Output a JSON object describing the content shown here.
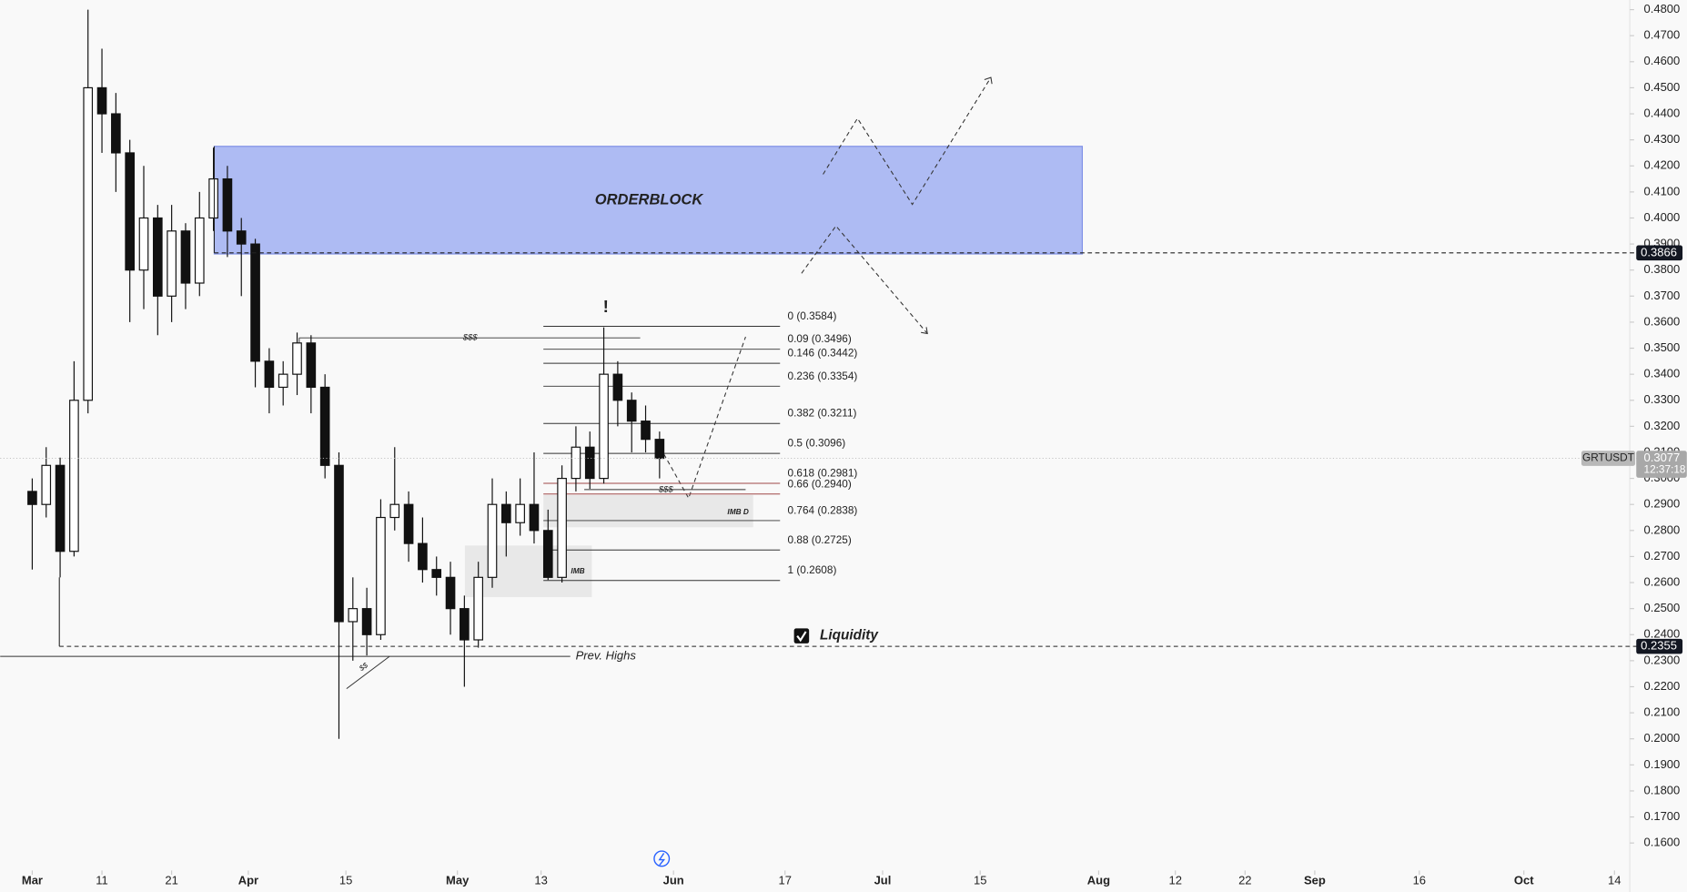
{
  "chart_data": {
    "type": "candlestick",
    "symbol": "GRTUSDT",
    "x": [
      0,
      2,
      4,
      6,
      8,
      10,
      12,
      14,
      16,
      18,
      20,
      22,
      24,
      26,
      28,
      30,
      32,
      34,
      36,
      38,
      40,
      42,
      44,
      46,
      48,
      50,
      52,
      54,
      56,
      58,
      60,
      62,
      64,
      66,
      68,
      70,
      72,
      74,
      76,
      78,
      80,
      82,
      84,
      86,
      88,
      90
    ],
    "open": [
      0.295,
      0.29,
      0.305,
      0.272,
      0.33,
      0.45,
      0.44,
      0.425,
      0.38,
      0.4,
      0.37,
      0.395,
      0.375,
      0.4,
      0.415,
      0.395,
      0.39,
      0.345,
      0.335,
      0.34,
      0.352,
      0.335,
      0.305,
      0.245,
      0.25,
      0.24,
      0.285,
      0.29,
      0.275,
      0.265,
      0.262,
      0.25,
      0.238,
      0.262,
      0.29,
      0.283,
      0.29,
      0.28,
      0.262,
      0.3,
      0.312,
      0.3,
      0.34,
      0.33,
      0.322,
      0.315
    ],
    "high": [
      0.3,
      0.312,
      0.308,
      0.345,
      0.48,
      0.465,
      0.448,
      0.43,
      0.42,
      0.405,
      0.405,
      0.398,
      0.41,
      0.427,
      0.42,
      0.4,
      0.392,
      0.35,
      0.345,
      0.356,
      0.355,
      0.34,
      0.31,
      0.262,
      0.258,
      0.292,
      0.312,
      0.295,
      0.285,
      0.27,
      0.268,
      0.255,
      0.268,
      0.3,
      0.295,
      0.3,
      0.31,
      0.288,
      0.305,
      0.32,
      0.318,
      0.358,
      0.345,
      0.333,
      0.328,
      0.318
    ],
    "low": [
      0.265,
      0.285,
      0.262,
      0.27,
      0.325,
      0.425,
      0.41,
      0.36,
      0.365,
      0.355,
      0.36,
      0.365,
      0.37,
      0.395,
      0.385,
      0.37,
      0.335,
      0.325,
      0.328,
      0.332,
      0.325,
      0.3,
      0.2,
      0.23,
      0.232,
      0.238,
      0.28,
      0.268,
      0.26,
      0.255,
      0.24,
      0.22,
      0.235,
      0.258,
      0.27,
      0.278,
      0.275,
      0.261,
      0.26,
      0.295,
      0.296,
      0.298,
      0.32,
      0.31,
      0.31,
      0.3
    ],
    "close": [
      0.29,
      0.305,
      0.272,
      0.33,
      0.45,
      0.44,
      0.425,
      0.38,
      0.4,
      0.37,
      0.395,
      0.375,
      0.4,
      0.415,
      0.395,
      0.39,
      0.345,
      0.335,
      0.34,
      0.352,
      0.335,
      0.305,
      0.245,
      0.25,
      0.24,
      0.285,
      0.29,
      0.275,
      0.265,
      0.262,
      0.25,
      0.238,
      0.262,
      0.29,
      0.283,
      0.29,
      0.28,
      0.262,
      0.3,
      0.312,
      0.3,
      0.34,
      0.33,
      0.322,
      0.315,
      0.3077
    ],
    "xlim": [
      -4.6,
      229.2
    ],
    "ylim": [
      0.1511,
      0.4837
    ],
    "xticks": [
      {
        "value": 0,
        "label": "Mar"
      },
      {
        "value": 10,
        "label": "11"
      },
      {
        "value": 20,
        "label": "21"
      },
      {
        "value": 31,
        "label": "Apr"
      },
      {
        "value": 45,
        "label": "15"
      },
      {
        "value": 61,
        "label": "May"
      },
      {
        "value": 73,
        "label": "13"
      },
      {
        "value": 92,
        "label": "Jun"
      },
      {
        "value": 108,
        "label": "17"
      },
      {
        "value": 122,
        "label": "Jul"
      },
      {
        "value": 136,
        "label": "15"
      },
      {
        "value": 153,
        "label": "Aug"
      },
      {
        "value": 164,
        "label": "12"
      },
      {
        "value": 174,
        "label": "22"
      },
      {
        "value": 184,
        "label": "Sep"
      },
      {
        "value": 199,
        "label": "16"
      },
      {
        "value": 214,
        "label": "Oct"
      },
      {
        "value": 227,
        "label": "14"
      }
    ],
    "yticks": [
      {
        "value": 0.48,
        "label": "0.4800"
      },
      {
        "value": 0.47,
        "label": "0.4700"
      },
      {
        "value": 0.46,
        "label": "0.4600"
      },
      {
        "value": 0.45,
        "label": "0.4500"
      },
      {
        "value": 0.44,
        "label": "0.4400"
      },
      {
        "value": 0.43,
        "label": "0.4300"
      },
      {
        "value": 0.42,
        "label": "0.4200"
      },
      {
        "value": 0.41,
        "label": "0.4100"
      },
      {
        "value": 0.4,
        "label": "0.4000"
      },
      {
        "value": 0.39,
        "label": "0.3900"
      },
      {
        "value": 0.38,
        "label": "0.3800"
      },
      {
        "value": 0.37,
        "label": "0.3700"
      },
      {
        "value": 0.36,
        "label": "0.3600"
      },
      {
        "value": 0.35,
        "label": "0.3500"
      },
      {
        "value": 0.34,
        "label": "0.3400"
      },
      {
        "value": 0.33,
        "label": "0.3300"
      },
      {
        "value": 0.32,
        "label": "0.3200"
      },
      {
        "value": 0.31,
        "label": "0.3100"
      },
      {
        "value": 0.3,
        "label": "0.3000"
      },
      {
        "value": 0.29,
        "label": "0.2900"
      },
      {
        "value": 0.28,
        "label": "0.2800"
      },
      {
        "value": 0.27,
        "label": "0.2700"
      },
      {
        "value": 0.26,
        "label": "0.2600"
      },
      {
        "value": 0.25,
        "label": "0.2500"
      },
      {
        "value": 0.24,
        "label": "0.2400"
      },
      {
        "value": 0.23,
        "label": "0.2300"
      },
      {
        "value": 0.22,
        "label": "0.2200"
      },
      {
        "value": 0.21,
        "label": "0.2100"
      },
      {
        "value": 0.2,
        "label": "0.2000"
      },
      {
        "value": 0.19,
        "label": "0.1900"
      },
      {
        "value": 0.18,
        "label": "0.1800"
      },
      {
        "value": 0.17,
        "label": "0.1700"
      },
      {
        "value": 0.16,
        "label": "0.1600"
      }
    ],
    "fib_levels": [
      {
        "value": 0.3584,
        "label": "0 (0.3584)"
      },
      {
        "value": 0.3496,
        "label": "0.09 (0.3496)"
      },
      {
        "value": 0.3442,
        "label": "0.146 (0.3442)"
      },
      {
        "value": 0.3354,
        "label": "0.236 (0.3354)"
      },
      {
        "value": 0.3211,
        "label": "0.382 (0.3211)"
      },
      {
        "value": 0.3096,
        "label": "0.5 (0.3096)"
      },
      {
        "value": 0.2981,
        "label": "0.618 (0.2981)"
      },
      {
        "value": 0.294,
        "label": "0.66 (0.2940)"
      },
      {
        "value": 0.2838,
        "label": "0.764 (0.2838)"
      },
      {
        "value": 0.2725,
        "label": "0.88 (0.2725)"
      },
      {
        "value": 0.2608,
        "label": "1 (0.2608)"
      }
    ],
    "price_tags": [
      {
        "value": 0.3866,
        "label": "0.3866"
      },
      {
        "value": 0.2355,
        "label": "0.2355"
      }
    ],
    "last_price": {
      "value": 0.3077,
      "label": "0.3077"
    },
    "countdown": "12:37:18",
    "annotations": {
      "orderblock": "ORDERBLOCK",
      "liquidity_top": "$$$",
      "liquidity_mid": "$$$",
      "liquidity_low": "$$",
      "imbalance_d": "IMB D",
      "imbalance": "IMB",
      "prev_highs": "Prev. Highs",
      "liquidity": "Liquidity",
      "alert": "!"
    }
  }
}
